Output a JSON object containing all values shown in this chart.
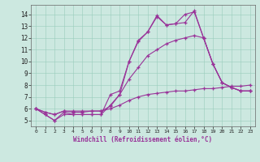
{
  "bg_color": "#cce8e0",
  "line_color": "#993399",
  "marker": "+",
  "xlabel": "Windchill (Refroidissement éolien,°C)",
  "xlim": [
    -0.5,
    23.5
  ],
  "ylim": [
    4.5,
    14.8
  ],
  "yticks": [
    5,
    6,
    7,
    8,
    9,
    10,
    11,
    12,
    13,
    14
  ],
  "xticks": [
    0,
    1,
    2,
    3,
    4,
    5,
    6,
    7,
    8,
    9,
    10,
    11,
    12,
    13,
    14,
    15,
    16,
    17,
    18,
    19,
    20,
    21,
    22,
    23
  ],
  "lines": [
    {
      "x": [
        0,
        1,
        2,
        3,
        4,
        5,
        6,
        7,
        8,
        9,
        10,
        11,
        12,
        13,
        14,
        15,
        16,
        17,
        18,
        19,
        20,
        21,
        22,
        23
      ],
      "y": [
        6.0,
        5.5,
        5.0,
        5.7,
        5.5,
        5.5,
        5.5,
        5.5,
        7.2,
        7.5,
        10.0,
        11.8,
        12.5,
        13.9,
        13.1,
        13.2,
        13.3,
        14.3,
        12.0,
        9.8,
        8.2,
        7.8,
        7.5,
        7.5
      ]
    },
    {
      "x": [
        0,
        1,
        2,
        3,
        4,
        5,
        6,
        7,
        8,
        9,
        10,
        11,
        12,
        13,
        14,
        15,
        16,
        17,
        18,
        19,
        20,
        21,
        22,
        23
      ],
      "y": [
        6.0,
        5.5,
        5.0,
        5.5,
        5.5,
        5.5,
        5.5,
        5.5,
        6.3,
        7.2,
        10.0,
        11.7,
        12.5,
        13.8,
        13.1,
        13.2,
        14.0,
        14.2,
        12.0,
        9.8,
        8.2,
        7.8,
        7.5,
        7.5
      ]
    },
    {
      "x": [
        0,
        1,
        2,
        3,
        4,
        5,
        6,
        7,
        8,
        9,
        10,
        11,
        12,
        13,
        14,
        15,
        16,
        17,
        18,
        19,
        20,
        21,
        22,
        23
      ],
      "y": [
        6.0,
        5.7,
        5.5,
        5.8,
        5.7,
        5.7,
        5.8,
        5.8,
        6.2,
        7.2,
        8.5,
        9.5,
        10.5,
        11.0,
        11.5,
        11.8,
        12.0,
        12.2,
        12.0,
        9.8,
        8.2,
        7.8,
        7.5,
        7.5
      ]
    },
    {
      "x": [
        0,
        1,
        2,
        3,
        4,
        5,
        6,
        7,
        8,
        9,
        10,
        11,
        12,
        13,
        14,
        15,
        16,
        17,
        18,
        19,
        20,
        21,
        22,
        23
      ],
      "y": [
        6.0,
        5.7,
        5.5,
        5.8,
        5.8,
        5.8,
        5.8,
        5.8,
        6.0,
        6.3,
        6.7,
        7.0,
        7.2,
        7.3,
        7.4,
        7.5,
        7.5,
        7.6,
        7.7,
        7.7,
        7.8,
        7.9,
        7.9,
        8.0
      ]
    }
  ]
}
